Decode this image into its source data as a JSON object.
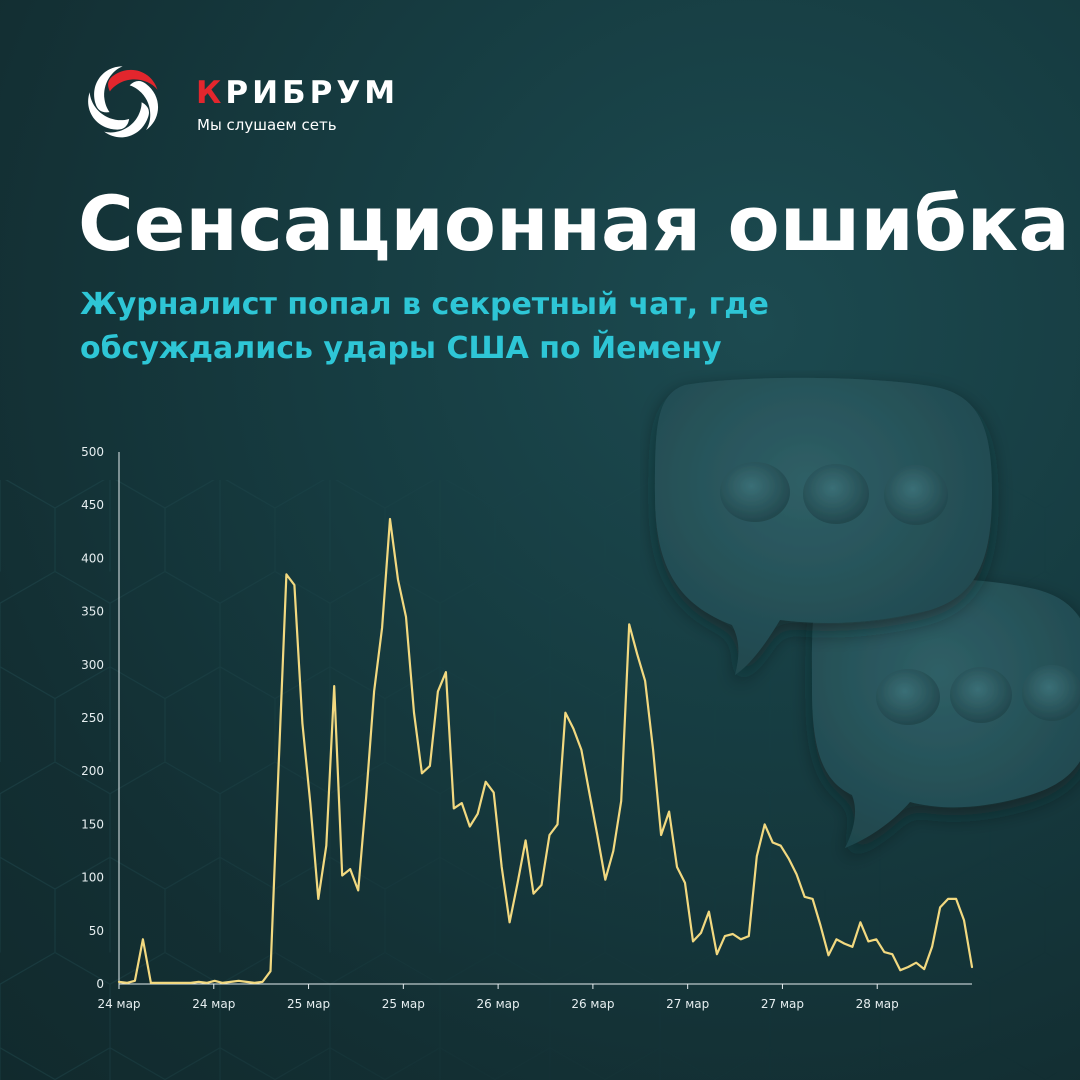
{
  "brand": {
    "name_first": "К",
    "name_rest": "РИБРУМ",
    "tagline": "Мы слушаем сеть"
  },
  "title": "Сенсационная ошибка",
  "subtitle": "Журналист попал в секретный чат, где обсуждались удары США по Йемену",
  "colors": {
    "background": "#143538",
    "accent": "#2ec6d6",
    "brand_red": "#e3262d",
    "line": "#f2d980"
  },
  "icons": [
    "krybrum-logo-icon",
    "chat-bubble-icon"
  ],
  "chart_data": {
    "type": "line",
    "title": "",
    "xlabel": "",
    "ylabel": "",
    "ylim": [
      0,
      500
    ],
    "yticks": [
      0,
      50,
      100,
      150,
      200,
      250,
      300,
      350,
      400,
      450,
      500
    ],
    "xticks": [
      "24 мар",
      "24 мар",
      "25 мар",
      "25 мар",
      "26 мар",
      "26 мар",
      "27 мар",
      "27 мар",
      "28 мар"
    ],
    "grid": false,
    "legend": "none",
    "series": [
      {
        "values": [
          2,
          1,
          3,
          42,
          1,
          1,
          1,
          1,
          1,
          1,
          2,
          1,
          3,
          1,
          2,
          3,
          2,
          1,
          2,
          12,
          200,
          385,
          375,
          245,
          170,
          80,
          130,
          280,
          102,
          108,
          88,
          175,
          275,
          335,
          437,
          380,
          345,
          255,
          198,
          205,
          275,
          293,
          165,
          170,
          148,
          160,
          190,
          180,
          110,
          58,
          95,
          135,
          85,
          93,
          140,
          150,
          255,
          240,
          220,
          180,
          140,
          98,
          125,
          172,
          338,
          310,
          285,
          220,
          140,
          162,
          110,
          95,
          40,
          48,
          68,
          28,
          45,
          47,
          42,
          45,
          120,
          150,
          133,
          130,
          118,
          103,
          82,
          80,
          55,
          27,
          42,
          38,
          35,
          58,
          40,
          42,
          30,
          28,
          13,
          16,
          20,
          14,
          35,
          72,
          80,
          80,
          60,
          16
        ]
      }
    ]
  }
}
